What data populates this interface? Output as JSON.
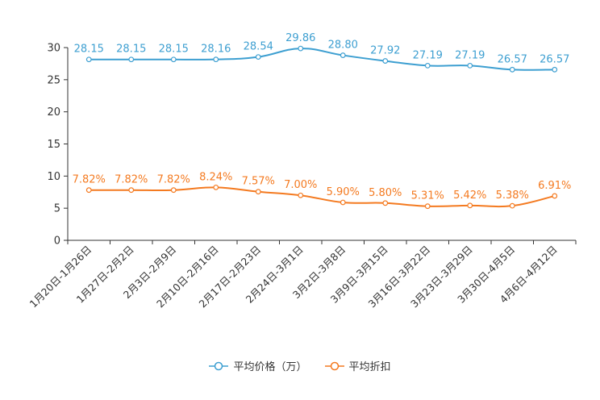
{
  "chart_data": {
    "type": "line",
    "title": "",
    "xlabel": "",
    "ylabel": "",
    "ylim": [
      0,
      30
    ],
    "yticks": [
      0,
      5,
      10,
      15,
      20,
      25,
      30
    ],
    "categories": [
      "1月20日-1月26日",
      "1月27日-2月2日",
      "2月3日-2月9日",
      "2月10日-2月16日",
      "2月17日-2月23日",
      "2月24日-3月1日",
      "3月2日-3月8日",
      "3月9日-3月15日",
      "3月16日-3月22日",
      "3月23日-3月29日",
      "3月30日-4月5日",
      "4月6日-4月12日"
    ],
    "series": [
      {
        "name": "平均价格（万）",
        "color": "#3d9fd1",
        "values": [
          28.15,
          28.15,
          28.15,
          28.16,
          28.54,
          29.86,
          28.8,
          27.92,
          27.19,
          27.19,
          26.57,
          26.57
        ],
        "labels": [
          "28.15",
          "28.15",
          "28.15",
          "28.16",
          "28.54",
          "29.86",
          "28.80",
          "27.92",
          "27.19",
          "27.19",
          "26.57",
          "26.57"
        ]
      },
      {
        "name": "平均折扣",
        "color": "#f47a20",
        "values": [
          7.82,
          7.82,
          7.82,
          8.24,
          7.57,
          7.0,
          5.9,
          5.8,
          5.31,
          5.42,
          5.38,
          6.91
        ],
        "labels": [
          "7.82%",
          "7.82%",
          "7.82%",
          "8.24%",
          "7.57%",
          "7.00%",
          "5.90%",
          "5.80%",
          "5.31%",
          "5.42%",
          "5.38%",
          "6.91%"
        ]
      }
    ],
    "legend_position": "bottom-center",
    "grid": false
  }
}
